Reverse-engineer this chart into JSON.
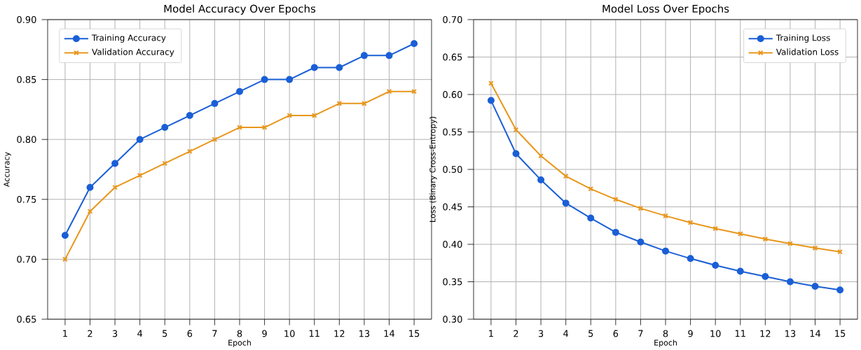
{
  "chart_data": [
    {
      "type": "line",
      "title": "Model Accuracy Over Epochs",
      "xlabel": "Epoch",
      "ylabel": "Accuracy",
      "x": [
        1,
        2,
        3,
        4,
        5,
        6,
        7,
        8,
        9,
        10,
        11,
        12,
        13,
        14,
        15
      ],
      "xlim": [
        0.3,
        15.7
      ],
      "xticks": [
        1,
        2,
        3,
        4,
        5,
        6,
        7,
        8,
        9,
        10,
        11,
        12,
        13,
        14,
        15
      ],
      "ylim": [
        0.65,
        0.9
      ],
      "yticks": [
        {
          "value": 0.65,
          "label": "0.65"
        },
        {
          "value": 0.7,
          "label": "0.70"
        },
        {
          "value": 0.75,
          "label": "0.75"
        },
        {
          "value": 0.8,
          "label": "0.80"
        },
        {
          "value": 0.85,
          "label": "0.85"
        },
        {
          "value": 0.9,
          "label": "0.90"
        }
      ],
      "grid": true,
      "legend": "top left",
      "line_style": "solid",
      "series": [
        {
          "name": "Training Accuracy",
          "color": "#1a5fd6",
          "marker": "circle",
          "values": [
            0.72,
            0.76,
            0.78,
            0.8,
            0.81,
            0.82,
            0.83,
            0.84,
            0.85,
            0.85,
            0.86,
            0.86,
            0.87,
            0.87,
            0.88
          ]
        },
        {
          "name": "Validation Accuracy",
          "color": "#e8961a",
          "marker": "cross",
          "values": [
            0.7,
            0.74,
            0.76,
            0.77,
            0.78,
            0.79,
            0.8,
            0.81,
            0.81,
            0.82,
            0.82,
            0.83,
            0.83,
            0.84,
            0.84
          ]
        }
      ]
    },
    {
      "type": "line",
      "title": "Model Loss Over Epochs",
      "xlabel": "Epoch",
      "ylabel": "Loss (Binary Cross-Entropy)",
      "x": [
        1,
        2,
        3,
        4,
        5,
        6,
        7,
        8,
        9,
        10,
        11,
        12,
        13,
        14,
        15
      ],
      "xlim": [
        0.3,
        15.7
      ],
      "xticks": [
        1,
        2,
        3,
        4,
        5,
        6,
        7,
        8,
        9,
        10,
        11,
        12,
        13,
        14,
        15
      ],
      "ylim": [
        0.3,
        0.7
      ],
      "yticks": [
        {
          "value": 0.3,
          "label": "0.30"
        },
        {
          "value": 0.35,
          "label": "0.35"
        },
        {
          "value": 0.4,
          "label": "0.40"
        },
        {
          "value": 0.45,
          "label": "0.45"
        },
        {
          "value": 0.5,
          "label": "0.50"
        },
        {
          "value": 0.55,
          "label": "0.55"
        },
        {
          "value": 0.6,
          "label": "0.60"
        },
        {
          "value": 0.65,
          "label": "0.65"
        },
        {
          "value": 0.7,
          "label": "0.70"
        }
      ],
      "grid": true,
      "legend": "top right",
      "line_style": "solid",
      "series": [
        {
          "name": "Training Loss",
          "color": "#1a5fd6",
          "marker": "circle",
          "values": [
            0.592,
            0.521,
            0.486,
            0.455,
            0.435,
            0.416,
            0.403,
            0.391,
            0.381,
            0.372,
            0.364,
            0.357,
            0.35,
            0.344,
            0.339
          ]
        },
        {
          "name": "Validation Loss",
          "color": "#e8961a",
          "marker": "cross",
          "values": [
            0.615,
            0.553,
            0.518,
            0.491,
            0.474,
            0.46,
            0.448,
            0.438,
            0.429,
            0.421,
            0.414,
            0.407,
            0.401,
            0.395,
            0.39
          ]
        }
      ]
    }
  ]
}
